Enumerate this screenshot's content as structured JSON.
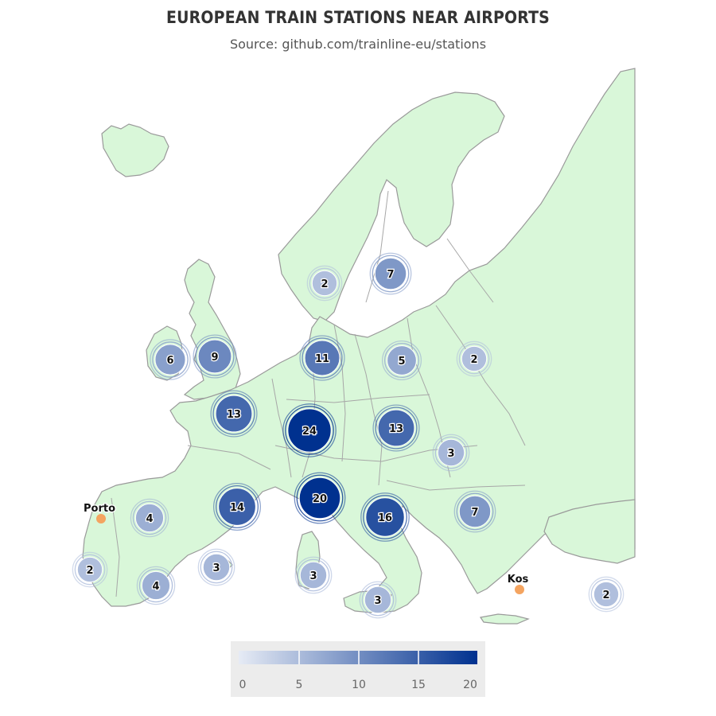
{
  "header": {
    "title": "EUROPEAN TRAIN STATIONS NEAR AIRPORTS",
    "subtitle": "Source: github.com/trainline-eu/stations"
  },
  "colors": {
    "land": "#d9f7d9",
    "border": "#9a9a9a",
    "scale_low": "#e6ebf5",
    "scale_high": "#00318f",
    "city_marker": "#f4a460",
    "legend_bg": "#ececec"
  },
  "clusters": [
    {
      "count": 2
    },
    {
      "count": 7
    },
    {
      "count": 6
    },
    {
      "count": 9
    },
    {
      "count": 11
    },
    {
      "count": 5
    },
    {
      "count": 2
    },
    {
      "count": 13
    },
    {
      "count": 24
    },
    {
      "count": 13
    },
    {
      "count": 3
    },
    {
      "count": 4
    },
    {
      "count": 14
    },
    {
      "count": 20
    },
    {
      "count": 16
    },
    {
      "count": 7
    },
    {
      "count": 2
    },
    {
      "count": 3
    },
    {
      "count": 3
    },
    {
      "count": 4
    },
    {
      "count": 3
    },
    {
      "count": 2
    }
  ],
  "cities": [
    {
      "name": "Porto"
    },
    {
      "name": "Kos"
    }
  ],
  "legend": {
    "min": 0,
    "max": 20,
    "ticks": [
      "0",
      "5",
      "10",
      "15",
      "20"
    ]
  }
}
